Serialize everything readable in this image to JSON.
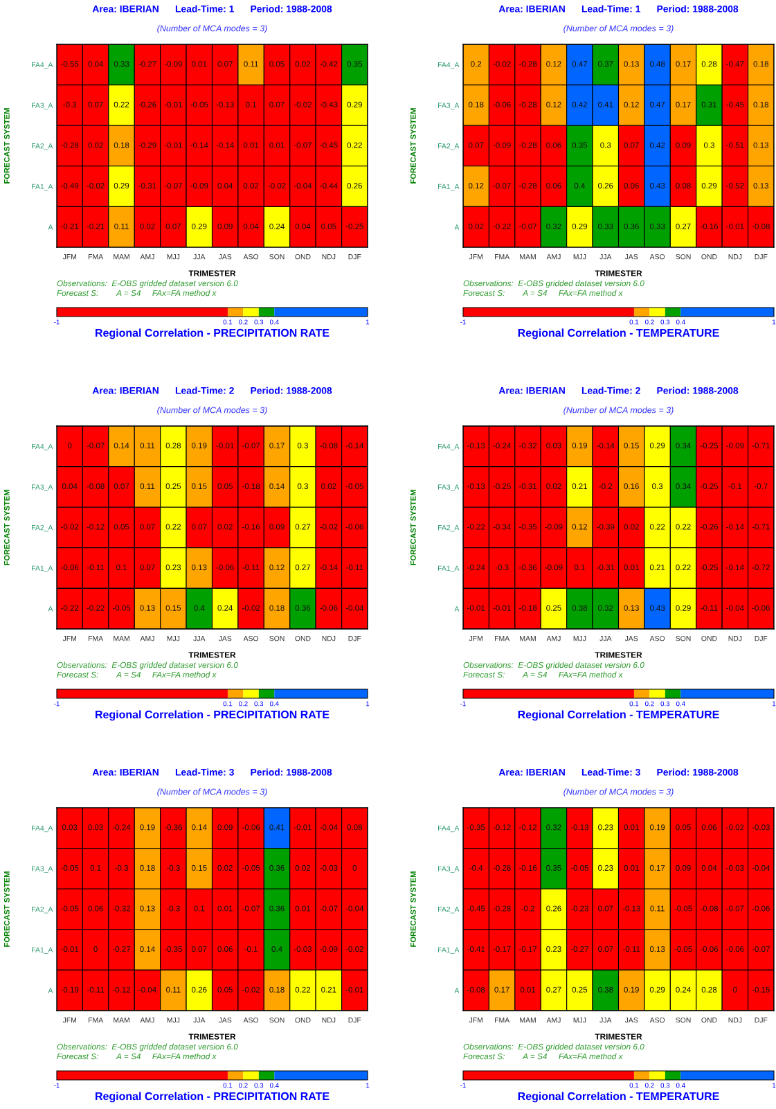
{
  "chart_data": [
    {
      "type": "heatmap",
      "title": "Area: IBERIAN      Lead-Time: 1      Period: 1988-2008",
      "subtitle": "(Number of MCA modes = 3)",
      "xlabel": "TRIMESTER",
      "ylabel": "FORECAST SYSTEM",
      "clabel": "Regional Correlation - PRECIPITATION RATE",
      "annotations": [
        "Observations:  E-OBS gridded dataset version 6.0",
        "Forecast S:        A = S4     FAx=FA method x"
      ],
      "categories": [
        "JFM",
        "FMA",
        "MAM",
        "AMJ",
        "MJJ",
        "JJA",
        "JAS",
        "ASO",
        "SON",
        "OND",
        "NDJ",
        "DJF"
      ],
      "y_categories": [
        "FA4_A",
        "FA3_A",
        "FA2_A",
        "FA1_A",
        "A"
      ],
      "cells": [
        [
          -0.55,
          0.04,
          0.33,
          -0.27,
          -0.09,
          0.01,
          0.07,
          0.11,
          0.05,
          0.02,
          -0.42,
          0.35
        ],
        [
          -0.3,
          0.07,
          0.22,
          -0.26,
          -0.01,
          -0.05,
          -0.13,
          0.1,
          0.07,
          -0.02,
          -0.43,
          0.29
        ],
        [
          -0.28,
          0.02,
          0.18,
          -0.29,
          -0.01,
          -0.14,
          -0.14,
          0.01,
          0.01,
          -0.07,
          -0.45,
          0.22
        ],
        [
          -0.49,
          -0.02,
          0.29,
          -0.31,
          -0.07,
          -0.09,
          0.04,
          0.02,
          -0.02,
          -0.04,
          -0.44,
          0.26
        ],
        [
          -0.21,
          -0.21,
          0.11,
          0.02,
          0.07,
          0.29,
          0.09,
          0.04,
          0.24,
          0.04,
          0.05,
          -0.25
        ]
      ],
      "data_labels": true,
      "clim": [
        -1,
        1
      ],
      "cticks": [
        -1,
        0.1,
        0.2,
        0.3,
        0.4,
        1
      ],
      "colors": [
        "#ff0000",
        "#ffa500",
        "#ffff00",
        "#00a000",
        "#0066ff"
      ]
    },
    {
      "type": "heatmap",
      "title": "Area: IBERIAN      Lead-Time: 1      Period: 1988-2008",
      "subtitle": "(Number of MCA modes = 3)",
      "xlabel": "TRIMESTER",
      "ylabel": "FORECAST SYSTEM",
      "clabel": "Regional Correlation - TEMPERATURE",
      "annotations": [
        "Observations:  E-OBS gridded dataset version 6.0",
        "Forecast S:        A = S4     FAx=FA method x"
      ],
      "categories": [
        "JFM",
        "FMA",
        "MAM",
        "AMJ",
        "MJJ",
        "JJA",
        "JAS",
        "ASO",
        "SON",
        "OND",
        "NDJ",
        "DJF"
      ],
      "y_categories": [
        "FA4_A",
        "FA3_A",
        "FA2_A",
        "FA1_A",
        "A"
      ],
      "cells": [
        [
          0.2,
          -0.02,
          -0.28,
          0.12,
          0.47,
          0.37,
          0.13,
          0.48,
          0.17,
          0.28,
          -0.47,
          0.18
        ],
        [
          0.18,
          -0.06,
          -0.28,
          0.12,
          0.42,
          0.41,
          0.12,
          0.47,
          0.17,
          0.31,
          -0.45,
          0.18
        ],
        [
          0.07,
          -0.09,
          -0.28,
          0.06,
          0.35,
          0.3,
          0.07,
          0.42,
          0.09,
          0.3,
          -0.51,
          0.13
        ],
        [
          0.12,
          -0.07,
          -0.28,
          0.06,
          0.4,
          0.26,
          0.06,
          0.43,
          0.08,
          0.29,
          -0.52,
          0.13
        ],
        [
          0.02,
          -0.22,
          -0.07,
          0.32,
          0.29,
          0.33,
          0.36,
          0.33,
          0.27,
          -0.16,
          -0.01,
          -0.08
        ]
      ],
      "data_labels": true,
      "clim": [
        -1,
        1
      ],
      "cticks": [
        -1,
        0.1,
        0.2,
        0.3,
        0.4,
        1
      ],
      "colors": [
        "#ff0000",
        "#ffa500",
        "#ffff00",
        "#00a000",
        "#0066ff"
      ]
    },
    {
      "type": "heatmap",
      "title": "Area: IBERIAN      Lead-Time: 2      Period: 1988-2008",
      "subtitle": "(Number of MCA modes = 3)",
      "xlabel": "TRIMESTER",
      "ylabel": "FORECAST SYSTEM",
      "clabel": "Regional Correlation - PRECIPITATION RATE",
      "annotations": [
        "Observations:  E-OBS gridded dataset version 6.0",
        "Forecast S:        A = S4     FAx=FA method x"
      ],
      "categories": [
        "JFM",
        "FMA",
        "MAM",
        "AMJ",
        "MJJ",
        "JJA",
        "JAS",
        "ASO",
        "SON",
        "OND",
        "NDJ",
        "DJF"
      ],
      "y_categories": [
        "FA4_A",
        "FA3_A",
        "FA2_A",
        "FA1_A",
        "A"
      ],
      "cells": [
        [
          0,
          -0.07,
          0.14,
          0.11,
          0.28,
          0.19,
          -0.01,
          -0.07,
          0.17,
          0.3,
          -0.08,
          -0.14
        ],
        [
          0.04,
          -0.08,
          0.07,
          0.11,
          0.25,
          0.15,
          0.05,
          -0.18,
          0.14,
          0.3,
          0.02,
          -0.05
        ],
        [
          -0.02,
          -0.12,
          0.05,
          0.07,
          0.22,
          0.07,
          0.02,
          -0.16,
          0.09,
          0.27,
          -0.02,
          -0.06
        ],
        [
          -0.06,
          -0.11,
          0.1,
          0.07,
          0.23,
          0.13,
          -0.06,
          -0.11,
          0.12,
          0.27,
          -0.14,
          -0.11
        ],
        [
          -0.22,
          -0.22,
          -0.05,
          0.13,
          0.15,
          0.4,
          0.24,
          -0.02,
          0.18,
          0.36,
          -0.06,
          -0.04
        ]
      ],
      "data_labels": true,
      "clim": [
        -1,
        1
      ],
      "cticks": [
        -1,
        0.1,
        0.2,
        0.3,
        0.4,
        1
      ],
      "colors": [
        "#ff0000",
        "#ffa500",
        "#ffff00",
        "#00a000",
        "#0066ff"
      ]
    },
    {
      "type": "heatmap",
      "title": "Area: IBERIAN      Lead-Time: 2      Period: 1988-2008",
      "subtitle": "(Number of MCA modes = 3)",
      "xlabel": "TRIMESTER",
      "ylabel": "FORECAST SYSTEM",
      "clabel": "Regional Correlation - TEMPERATURE",
      "annotations": [
        "Observations:  E-OBS gridded dataset version 6.0",
        "Forecast S:        A = S4     FAx=FA method x"
      ],
      "categories": [
        "JFM",
        "FMA",
        "MAM",
        "AMJ",
        "MJJ",
        "JJA",
        "JAS",
        "ASO",
        "SON",
        "OND",
        "NDJ",
        "DJF"
      ],
      "y_categories": [
        "FA4_A",
        "FA3_A",
        "FA2_A",
        "FA1_A",
        "A"
      ],
      "cells": [
        [
          -0.13,
          -0.24,
          -0.32,
          0.03,
          0.19,
          -0.14,
          0.15,
          0.29,
          0.34,
          -0.25,
          -0.09,
          -0.71
        ],
        [
          -0.13,
          -0.25,
          -0.31,
          0.02,
          0.21,
          -0.2,
          0.16,
          0.3,
          0.34,
          -0.25,
          -0.1,
          -0.7
        ],
        [
          -0.22,
          -0.34,
          -0.35,
          -0.09,
          0.12,
          -0.39,
          0.02,
          0.22,
          0.22,
          -0.26,
          -0.14,
          -0.71
        ],
        [
          -0.24,
          -0.3,
          -0.36,
          -0.09,
          0.1,
          -0.31,
          0.01,
          0.21,
          0.22,
          -0.25,
          -0.14,
          -0.72
        ],
        [
          -0.01,
          -0.01,
          -0.18,
          0.25,
          0.38,
          0.32,
          0.13,
          0.43,
          0.29,
          -0.11,
          -0.04,
          -0.06
        ]
      ],
      "data_labels": true,
      "clim": [
        -1,
        1
      ],
      "cticks": [
        -1,
        0.1,
        0.2,
        0.3,
        0.4,
        1
      ],
      "colors": [
        "#ff0000",
        "#ffa500",
        "#ffff00",
        "#00a000",
        "#0066ff"
      ]
    },
    {
      "type": "heatmap",
      "title": "Area: IBERIAN      Lead-Time: 3      Period: 1988-2008",
      "subtitle": "(Number of MCA modes = 3)",
      "xlabel": "TRIMESTER",
      "ylabel": "FORECAST SYSTEM",
      "clabel": "Regional Correlation - PRECIPITATION RATE",
      "annotations": [
        "Observations:  E-OBS gridded dataset version 6.0",
        "Forecast S:        A = S4     FAx=FA method x"
      ],
      "categories": [
        "JFM",
        "FMA",
        "MAM",
        "AMJ",
        "MJJ",
        "JJA",
        "JAS",
        "ASO",
        "SON",
        "OND",
        "NDJ",
        "DJF"
      ],
      "y_categories": [
        "FA4_A",
        "FA3_A",
        "FA2_A",
        "FA1_A",
        "A"
      ],
      "cells": [
        [
          0.03,
          0.03,
          -0.24,
          0.19,
          -0.36,
          0.14,
          0.09,
          -0.06,
          0.41,
          -0.01,
          -0.04,
          0.08
        ],
        [
          -0.05,
          0.1,
          -0.3,
          0.18,
          -0.3,
          0.15,
          0.02,
          -0.05,
          0.36,
          0.02,
          -0.03,
          0
        ],
        [
          -0.05,
          0.06,
          -0.32,
          0.13,
          -0.3,
          0.1,
          0.01,
          -0.07,
          0.36,
          0.01,
          -0.07,
          -0.04
        ],
        [
          -0.01,
          0,
          -0.27,
          0.14,
          -0.35,
          0.07,
          0.06,
          -0.1,
          0.4,
          -0.03,
          -0.09,
          -0.02
        ],
        [
          -0.19,
          -0.11,
          -0.12,
          -0.04,
          0.11,
          0.26,
          0.05,
          -0.02,
          0.18,
          0.22,
          0.21,
          -0.01
        ]
      ],
      "data_labels": true,
      "clim": [
        -1,
        1
      ],
      "cticks": [
        -1,
        0.1,
        0.2,
        0.3,
        0.4,
        1
      ],
      "colors": [
        "#ff0000",
        "#ffa500",
        "#ffff00",
        "#00a000",
        "#0066ff"
      ]
    },
    {
      "type": "heatmap",
      "title": "Area: IBERIAN      Lead-Time: 3      Period: 1988-2008",
      "subtitle": "(Number of MCA modes = 3)",
      "xlabel": "TRIMESTER",
      "ylabel": "FORECAST SYSTEM",
      "clabel": "Regional Correlation - TEMPERATURE",
      "annotations": [
        "Observations:  E-OBS gridded dataset version 6.0",
        "Forecast S:        A = S4     FAx=FA method x"
      ],
      "categories": [
        "JFM",
        "FMA",
        "MAM",
        "AMJ",
        "MJJ",
        "JJA",
        "JAS",
        "ASO",
        "SON",
        "OND",
        "NDJ",
        "DJF"
      ],
      "y_categories": [
        "FA4_A",
        "FA3_A",
        "FA2_A",
        "FA1_A",
        "A"
      ],
      "cells": [
        [
          -0.35,
          -0.12,
          -0.12,
          0.32,
          -0.13,
          0.23,
          0.01,
          0.19,
          0.05,
          0.06,
          -0.02,
          -0.03
        ],
        [
          -0.4,
          -0.28,
          -0.16,
          0.35,
          -0.05,
          0.23,
          0.01,
          0.17,
          0.09,
          0.04,
          -0.03,
          -0.04
        ],
        [
          -0.45,
          -0.28,
          -0.2,
          0.26,
          -0.23,
          0.07,
          -0.13,
          0.11,
          -0.05,
          -0.08,
          -0.07,
          -0.06
        ],
        [
          -0.41,
          -0.17,
          -0.17,
          0.23,
          -0.27,
          0.07,
          -0.11,
          0.13,
          -0.05,
          -0.06,
          -0.06,
          -0.07
        ],
        [
          -0.08,
          0.17,
          0.01,
          0.27,
          0.25,
          0.38,
          0.19,
          0.29,
          0.24,
          0.28,
          0,
          -0.15
        ]
      ],
      "data_labels": true,
      "clim": [
        -1,
        1
      ],
      "cticks": [
        -1,
        0.1,
        0.2,
        0.3,
        0.4,
        1
      ],
      "colors": [
        "#ff0000",
        "#ffa500",
        "#ffff00",
        "#00a000",
        "#0066ff"
      ]
    }
  ]
}
